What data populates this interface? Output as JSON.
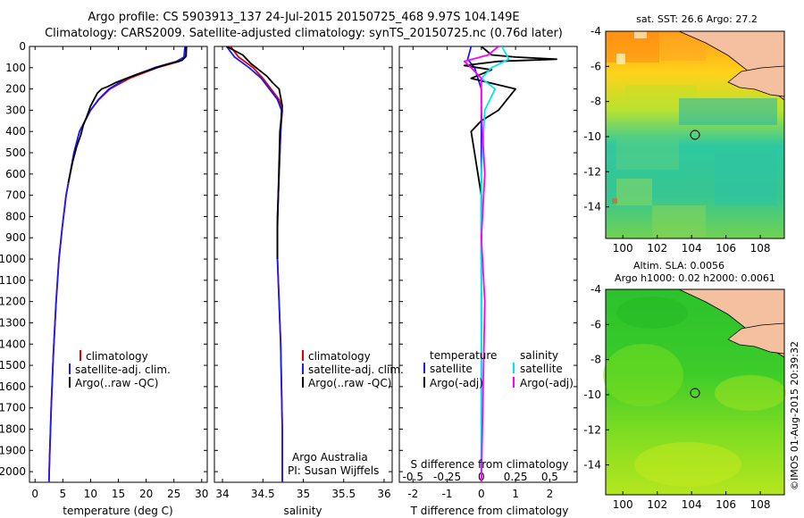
{
  "header": {
    "title_line1": "Argo profile: CS 5903913_137 24-Jul-2015 20150725_468 9.97S 104.149E",
    "title_line2": "Climatology: CARS2009. Satellite-adjusted climatology: synTS_20150725.nc (0.76d later)"
  },
  "colors": {
    "climatology": "#e00000",
    "satellite": "#1a1aff",
    "argo": "#000000",
    "salinity_satellite": "#00e5ee",
    "salinity_argo": "#ff00ff",
    "land": "#f4c0a0"
  },
  "legend_temperature_panel": [
    "climatology",
    "satellite-adj. clim.",
    "Argo(..raw -QC)"
  ],
  "legend_salinity_panel": [
    "climatology",
    "satellite-adj. clim.",
    "Argo(..raw -QC)"
  ],
  "legend_diff_panel": {
    "temperature_header": "temperature",
    "salinity_header": "salinity",
    "temperature_items": [
      "satellite",
      "Argo(-adj)"
    ],
    "salinity_items": [
      "satellite",
      "Argo(-adj)"
    ]
  },
  "credits": {
    "line1": "Argo Australia",
    "line2": "PI: Susan Wijffels"
  },
  "map_sst": {
    "title": "sat. SST: 26.6 Argo: 27.2",
    "lat_ticks": [
      "-4",
      "-6",
      "-8",
      "-10",
      "-12",
      "-14"
    ],
    "lon_ticks": [
      "100",
      "102",
      "104",
      "106",
      "108"
    ],
    "argo_marker": {
      "lon": 104.149,
      "lat": -9.97
    }
  },
  "map_sla": {
    "title_line1": "Altim. SLA: 0.0056",
    "title_line2": "Argo h1000: 0.02 h2000: 0.0061",
    "lat_ticks": [
      "-4",
      "-6",
      "-8",
      "-10",
      "-12",
      "-14"
    ],
    "lon_ticks": [
      "100",
      "102",
      "104",
      "106",
      "108"
    ],
    "argo_marker": {
      "lon": 104.149,
      "lat": -9.97
    }
  },
  "watermark": "©IMOS 01-Aug-2015 20:39:32",
  "chart_data": [
    {
      "type": "line",
      "xlabel": "temperature (deg C)",
      "ylabel": "",
      "xlim": [
        -1,
        31
      ],
      "ylim": [
        2050,
        0
      ],
      "x_ticks": [
        "0",
        "5",
        "10",
        "15",
        "20",
        "25",
        "30"
      ],
      "y_ticks": [
        "0",
        "100",
        "200",
        "300",
        "400",
        "500",
        "600",
        "700",
        "800",
        "900",
        "1000",
        "1100",
        "1200",
        "1300",
        "1400",
        "1500",
        "1600",
        "1700",
        "1800",
        "1900",
        "2000"
      ],
      "series": [
        {
          "name": "climatology",
          "color_key": "climatology",
          "x": [
            27.3,
            27.1,
            26.0,
            22.0,
            17.0,
            13.5,
            11.5,
            10.0,
            9.0,
            8.0,
            7.0,
            6.3,
            5.6,
            4.9,
            4.3,
            3.8,
            3.3,
            2.9,
            2.6,
            2.5
          ],
          "y": [
            0,
            50,
            70,
            100,
            150,
            200,
            250,
            300,
            350,
            400,
            500,
            600,
            700,
            850,
            1000,
            1200,
            1450,
            1700,
            1950,
            2050
          ]
        },
        {
          "name": "satellite-adj. clim.",
          "color_key": "satellite",
          "x": [
            27.0,
            26.8,
            25.5,
            21.5,
            16.5,
            13.3,
            11.4,
            10.0,
            9.0,
            8.0,
            7.0,
            6.3,
            5.6,
            4.9,
            4.3,
            3.8,
            3.3,
            2.9,
            2.6,
            2.5
          ],
          "y": [
            0,
            50,
            70,
            100,
            150,
            200,
            250,
            300,
            350,
            400,
            500,
            600,
            700,
            850,
            1000,
            1200,
            1450,
            1700,
            1950,
            2050
          ]
        },
        {
          "name": "Argo(..raw -QC)",
          "color_key": "argo",
          "x": [
            27.2,
            27.2,
            26.5,
            23.0,
            18.5,
            14.5,
            13.0,
            12.0,
            11.2,
            10.0,
            9.3,
            8.7,
            8.2,
            7.5,
            6.8,
            6.0
          ],
          "y": [
            0,
            45,
            65,
            90,
            130,
            170,
            190,
            200,
            220,
            280,
            330,
            370,
            420,
            470,
            540,
            640
          ]
        }
      ]
    },
    {
      "type": "line",
      "xlabel": "salinity",
      "ylabel": "",
      "xlim": [
        33.9,
        36.1
      ],
      "ylim": [
        2050,
        0
      ],
      "x_ticks": [
        "34",
        "34.5",
        "35",
        "35.5",
        "36"
      ],
      "series": [
        {
          "name": "climatology",
          "color_key": "climatology",
          "x": [
            34.1,
            34.2,
            34.38,
            34.5,
            34.6,
            34.7,
            34.74,
            34.72,
            34.7,
            34.68,
            34.68,
            34.7,
            34.72,
            34.73,
            34.74,
            34.74
          ],
          "y": [
            0,
            50,
            100,
            150,
            200,
            250,
            300,
            400,
            600,
            800,
            1000,
            1200,
            1400,
            1600,
            1800,
            2050
          ]
        },
        {
          "name": "satellite-adj. clim.",
          "color_key": "satellite",
          "x": [
            34.05,
            34.15,
            34.33,
            34.48,
            34.58,
            34.68,
            34.73,
            34.72,
            34.7,
            34.68,
            34.68,
            34.7,
            34.72,
            34.73,
            34.74,
            34.74
          ],
          "y": [
            0,
            50,
            100,
            150,
            200,
            250,
            300,
            400,
            600,
            800,
            1000,
            1200,
            1400,
            1600,
            1800,
            2050
          ]
        },
        {
          "name": "Argo(..raw -QC)",
          "color_key": "argo",
          "x": [
            34.05,
            34.25,
            34.35,
            34.45,
            34.55,
            34.62,
            34.7,
            34.72,
            34.74,
            34.73,
            34.71,
            34.7,
            34.69,
            34.68,
            34.68
          ],
          "y": [
            0,
            40,
            80,
            110,
            140,
            170,
            200,
            240,
            280,
            330,
            400,
            550,
            700,
            850,
            1000
          ]
        }
      ]
    },
    {
      "type": "line",
      "xlabel": "T difference from climatology",
      "ylabel": "",
      "secondary_xlabel": "S difference from climatology",
      "xlim": [
        -2.4,
        2.8
      ],
      "ylim": [
        2050,
        0
      ],
      "x_ticks": [
        "-2",
        "-1",
        "0",
        "1",
        "2"
      ],
      "secondary_x_ticks": [
        "-0.5",
        "-0.25",
        "0",
        "0.25",
        "0.5"
      ],
      "series": [
        {
          "name": "satellite",
          "group": "temperature",
          "color_key": "satellite",
          "x": [
            -0.3,
            -0.4,
            -0.2,
            -0.1,
            0.0,
            0.0,
            0.0,
            0.0,
            0.0
          ],
          "y": [
            0,
            60,
            100,
            150,
            200,
            300,
            600,
            1200,
            2050
          ]
        },
        {
          "name": "Argo(-adj)",
          "group": "temperature",
          "color_key": "argo",
          "x": [
            0.0,
            0.3,
            1.0,
            2.2,
            0.5,
            -0.5,
            0.3,
            -0.3,
            1.0,
            0.5,
            0.0,
            -0.3,
            -0.2,
            -0.1,
            0.0,
            0.0
          ],
          "y": [
            0,
            40,
            50,
            60,
            70,
            90,
            110,
            150,
            200,
            300,
            350,
            400,
            500,
            600,
            700,
            1000
          ]
        },
        {
          "name": "satellite",
          "group": "salinity",
          "color_key": "salinity_satellite",
          "x": [
            0.6,
            0.8,
            0.3,
            0.0,
            0.4,
            0.1,
            0.0,
            0.0,
            0.0
          ],
          "y": [
            0,
            60,
            100,
            150,
            200,
            300,
            600,
            1200,
            2050
          ]
        },
        {
          "name": "Argo(-adj)",
          "group": "salinity",
          "color_key": "salinity_argo",
          "x": [
            0.5,
            0.2,
            -0.5,
            -0.3,
            0.0,
            0.0,
            0.1,
            0.0,
            0.1,
            0.0
          ],
          "y": [
            0,
            40,
            70,
            100,
            150,
            300,
            600,
            900,
            1200,
            2050
          ]
        }
      ]
    }
  ]
}
